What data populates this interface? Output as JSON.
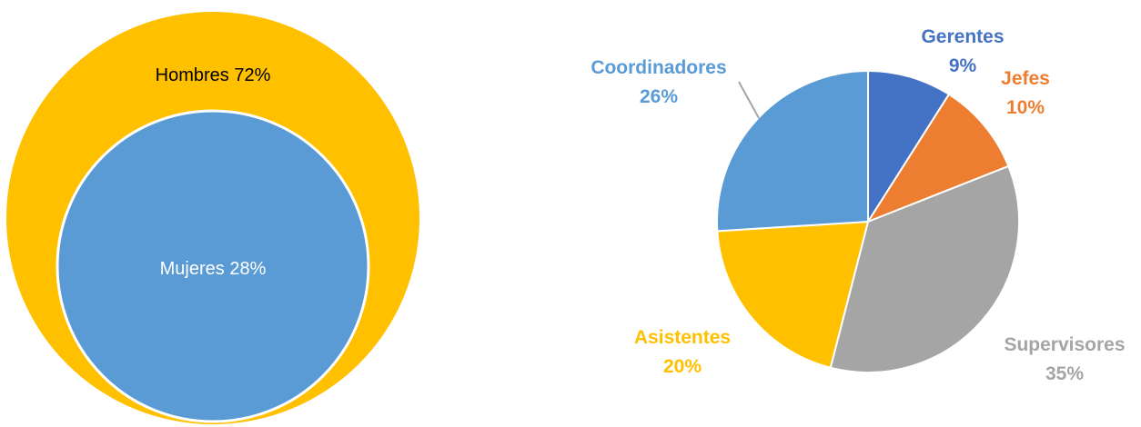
{
  "chart_data": [
    {
      "type": "venn",
      "series": [
        {
          "name": "Hombres",
          "value": 72,
          "label": "Hombres 72%",
          "color": "#FFC000",
          "label_color": "#000000"
        },
        {
          "name": "Mujeres",
          "value": 28,
          "label": "Mujeres 28%",
          "color": "#5B9BD5",
          "label_color": "#FFFFFF"
        }
      ]
    },
    {
      "type": "pie",
      "slices": [
        {
          "name": "Gerentes",
          "value": 9,
          "pct_label": "9%",
          "color": "#4472C4"
        },
        {
          "name": "Jefes",
          "value": 10,
          "pct_label": "10%",
          "color": "#ED7D31"
        },
        {
          "name": "Supervisores",
          "value": 35,
          "pct_label": "35%",
          "color": "#A5A5A5"
        },
        {
          "name": "Asistentes",
          "value": 20,
          "pct_label": "20%",
          "color": "#FFC000"
        },
        {
          "name": "Coordinadores",
          "value": 26,
          "pct_label": "26%",
          "color": "#5B9BD5"
        }
      ]
    }
  ]
}
